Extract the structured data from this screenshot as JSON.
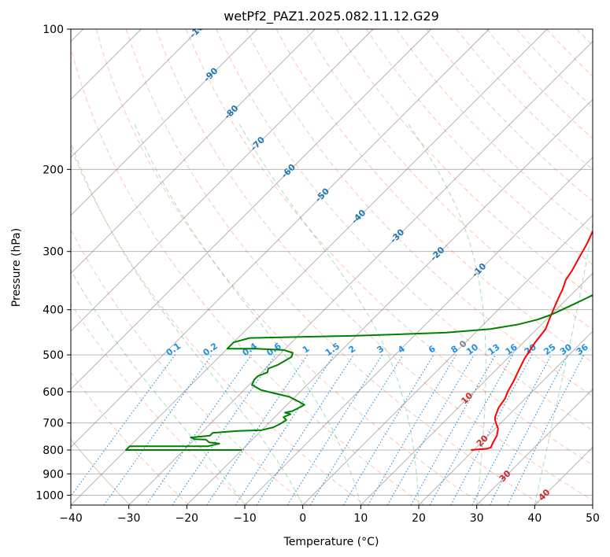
{
  "chart_data": {
    "type": "line",
    "title": "wetPf2_PAZ1.2025.082.11.12.G29",
    "xlabel": "Temperature (°C)",
    "ylabel": "Pressure (hPa)",
    "xlim": [
      -40,
      50
    ],
    "ylim": [
      1050,
      100
    ],
    "y_scale": "log",
    "x_ticks": [
      "−40",
      "−30",
      "−20",
      "−10",
      "0",
      "10",
      "20",
      "30",
      "40",
      "50"
    ],
    "x_tick_values": [
      -40,
      -30,
      -20,
      -10,
      0,
      10,
      20,
      30,
      40,
      50
    ],
    "y_ticks": [
      "100",
      "200",
      "300",
      "400",
      "500",
      "600",
      "700",
      "800",
      "900",
      "1000"
    ],
    "y_tick_values": [
      100,
      200,
      300,
      400,
      500,
      600,
      700,
      800,
      900,
      1000
    ],
    "skew": 45,
    "grid": true,
    "colors": {
      "temperature": "#ff0000",
      "dewpoint": "#008000",
      "isotherm": "#808080",
      "dry_adiabat": "#ff8c66",
      "moist_adiabat": "#3cb371",
      "mixing_ratio": "#1f8fe0",
      "isotherm_labels_cold": "#1f77b4",
      "isotherm_labels_warm": "#d62728",
      "isotherm_label_zero": "#808080",
      "dry_adiabat_far": "#c8a078"
    },
    "series": [
      {
        "key": "temperature",
        "points": [
          [
            19.5,
            800
          ],
          [
            22.0,
            795
          ],
          [
            22.5,
            790
          ],
          [
            22.0,
            770
          ],
          [
            21.5,
            745
          ],
          [
            20.5,
            720
          ],
          [
            19.5,
            705
          ],
          [
            18.5,
            690
          ],
          [
            18.0,
            680
          ],
          [
            17.0,
            650
          ],
          [
            16.5,
            620
          ],
          [
            15.8,
            600
          ],
          [
            15.0,
            570
          ],
          [
            14.0,
            540
          ],
          [
            13.0,
            510
          ],
          [
            12.0,
            470
          ],
          [
            11.5,
            440
          ],
          [
            10.5,
            420
          ],
          [
            9.5,
            400
          ],
          [
            8.5,
            380
          ],
          [
            7.5,
            360
          ],
          [
            6.5,
            345
          ],
          [
            6.0,
            330
          ],
          [
            5.0,
            310
          ],
          [
            4.0,
            290
          ],
          [
            3.0,
            275
          ],
          [
            2.0,
            260
          ],
          [
            1.0,
            240
          ],
          [
            0.5,
            228
          ],
          [
            0.0,
            215
          ],
          [
            0.5,
            200
          ],
          [
            1.5,
            188
          ],
          [
            3.0,
            178
          ],
          [
            5.0,
            170
          ],
          [
            6.5,
            163
          ],
          [
            7.0,
            155
          ],
          [
            7.5,
            148
          ],
          [
            8.5,
            140
          ],
          [
            9.0,
            133
          ],
          [
            9.5,
            125
          ],
          [
            10.5,
            118
          ],
          [
            11.5,
            113
          ],
          [
            12.5,
            108
          ],
          [
            12.0,
            104
          ],
          [
            11.5,
            100
          ]
        ]
      },
      {
        "key": "dewpoint",
        "points": [
          [
            -20.0,
            800
          ],
          [
            -40.0,
            800
          ],
          [
            -40.0,
            785
          ],
          [
            -26.5,
            785
          ],
          [
            -25.0,
            775
          ],
          [
            -27.0,
            770
          ],
          [
            -28.0,
            760
          ],
          [
            -30.0,
            758
          ],
          [
            -31.0,
            752
          ],
          [
            -28.0,
            745
          ],
          [
            -28.0,
            735
          ],
          [
            -24.0,
            728
          ],
          [
            -20.0,
            725
          ],
          [
            -18.5,
            715
          ],
          [
            -18.0,
            705
          ],
          [
            -17.5,
            690
          ],
          [
            -18.5,
            680
          ],
          [
            -17.8,
            670
          ],
          [
            -19.0,
            665
          ],
          [
            -18.0,
            660
          ],
          [
            -17.5,
            650
          ],
          [
            -17.0,
            640
          ],
          [
            -18.5,
            630
          ],
          [
            -21.0,
            615
          ],
          [
            -24.0,
            605
          ],
          [
            -27.0,
            595
          ],
          [
            -29.5,
            580
          ],
          [
            -30.0,
            565
          ],
          [
            -30.0,
            555
          ],
          [
            -29.0,
            545
          ],
          [
            -29.5,
            535
          ],
          [
            -28.5,
            525
          ],
          [
            -28.0,
            515
          ],
          [
            -27.5,
            505
          ],
          [
            -28.0,
            495
          ],
          [
            -30.0,
            488
          ],
          [
            -35.0,
            485
          ],
          [
            -40.0,
            485
          ],
          [
            -40.0,
            470
          ],
          [
            -38.0,
            460
          ],
          [
            -20.0,
            455
          ],
          [
            -5.0,
            448
          ],
          [
            2.0,
            440
          ],
          [
            6.0,
            430
          ],
          [
            8.5,
            420
          ],
          [
            10.0,
            410
          ],
          [
            11.0,
            400
          ],
          [
            12.0,
            390
          ],
          [
            13.0,
            380
          ],
          [
            14.0,
            370
          ],
          [
            14.5,
            360
          ],
          [
            15.0,
            350
          ],
          [
            15.0,
            340
          ],
          [
            14.5,
            330
          ],
          [
            13.5,
            320
          ],
          [
            12.5,
            310
          ],
          [
            11.0,
            300
          ],
          [
            9.5,
            290
          ],
          [
            8.5,
            280
          ],
          [
            8.0,
            270
          ],
          [
            8.0,
            262
          ],
          [
            8.5,
            252
          ],
          [
            8.5,
            245
          ],
          [
            7.5,
            238
          ],
          [
            6.5,
            230
          ],
          [
            6.0,
            222
          ],
          [
            5.5,
            215
          ],
          [
            5.0,
            208
          ],
          [
            4.5,
            200
          ],
          [
            2.5,
            193
          ],
          [
            -2.0,
            188
          ],
          [
            -6.0,
            185
          ],
          [
            -8.5,
            182
          ],
          [
            -10.5,
            177
          ],
          [
            -11.5,
            170
          ],
          [
            -12.0,
            162
          ],
          [
            -11.5,
            153
          ],
          [
            -10.0,
            145
          ],
          [
            -10.5,
            138
          ],
          [
            -12.0,
            133
          ],
          [
            -14.5,
            128
          ],
          [
            -17.0,
            123
          ],
          [
            -15.5,
            118
          ],
          [
            -11.5,
            114
          ],
          [
            -6.5,
            110
          ],
          [
            -3.0,
            106
          ],
          [
            -1.0,
            102
          ],
          [
            0.0,
            100
          ]
        ]
      }
    ],
    "isotherm_labels": [
      {
        "t": -100,
        "text": "-100",
        "c": "cold"
      },
      {
        "t": -90,
        "text": "-90",
        "c": "cold"
      },
      {
        "t": -80,
        "text": "-80",
        "c": "cold"
      },
      {
        "t": -70,
        "text": "-70",
        "c": "cold"
      },
      {
        "t": -60,
        "text": "-60",
        "c": "cold"
      },
      {
        "t": -50,
        "text": "-50",
        "c": "cold"
      },
      {
        "t": -40,
        "text": "-40",
        "c": "cold"
      },
      {
        "t": -30,
        "text": "-30",
        "c": "cold"
      },
      {
        "t": -20,
        "text": "-20",
        "c": "cold"
      },
      {
        "t": -10,
        "text": "-10",
        "c": "cold"
      },
      {
        "t": 0,
        "text": "0",
        "c": "zero"
      },
      {
        "t": 10,
        "text": "10",
        "c": "warm"
      },
      {
        "t": 20,
        "text": "20",
        "c": "warm"
      },
      {
        "t": 30,
        "text": "30",
        "c": "warm"
      },
      {
        "t": 40,
        "text": "40",
        "c": "warm"
      }
    ],
    "mixing_ratio_labels": [
      "0.1",
      "0.2",
      "0.4",
      "0.6",
      "1",
      "1.5",
      "2",
      "3",
      "4",
      "6",
      "8",
      "10",
      "13",
      "16",
      "20",
      "25",
      "30",
      "36"
    ],
    "mixing_ratio_values": [
      0.1,
      0.2,
      0.4,
      0.6,
      1,
      1.5,
      2,
      3,
      4,
      6,
      8,
      10,
      13,
      16,
      20,
      25,
      30,
      36
    ]
  }
}
